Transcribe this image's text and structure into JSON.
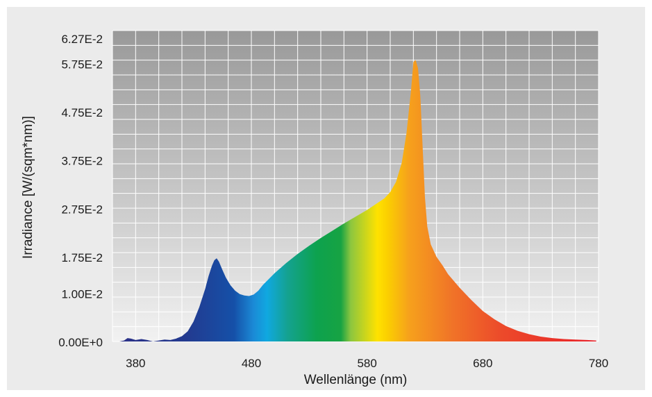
{
  "chart_data": {
    "type": "area",
    "title": "",
    "xlabel": "Wellenlänge (nm)",
    "ylabel": "Irradiance [W/(sqm*nm)]",
    "xlim": [
      360,
      780
    ],
    "ylim": [
      0,
      0.0643
    ],
    "grid": true,
    "x_ticks": [
      380,
      480,
      580,
      680,
      780
    ],
    "x_tick_labels": [
      "380",
      "480",
      "580",
      "680",
      "780"
    ],
    "y_ticks": [
      0,
      0.01,
      0.0175,
      0.0275,
      0.0375,
      0.0475,
      0.0575,
      0.0627
    ],
    "y_tick_labels": [
      "0.00E+0",
      "1.00E-2",
      "1.75E-2",
      "2.75E-2",
      "3.75E-2",
      "4.75E-2",
      "5.75E-2",
      "6.27E-2"
    ],
    "fill": "visible-spectrum gradient (violet-blue to red)",
    "series": [
      {
        "x": [
          366,
          370,
          373,
          376,
          380,
          385,
          390,
          395,
          400,
          405,
          410,
          415,
          420,
          425,
          430,
          435,
          440,
          443,
          446,
          448,
          450,
          452,
          455,
          458,
          462,
          466,
          470,
          474,
          478,
          482,
          486,
          490,
          495,
          500,
          510,
          520,
          530,
          540,
          550,
          560,
          570,
          580,
          590,
          595,
          600,
          605,
          610,
          614,
          618,
          620,
          622,
          624,
          626,
          628,
          630,
          632,
          635,
          640,
          645,
          650,
          660,
          670,
          680,
          690,
          700,
          710,
          720,
          730,
          740,
          750,
          760,
          770,
          778
        ],
        "y": [
          0.0,
          0.0002,
          0.0007,
          0.0006,
          0.0003,
          0.0005,
          0.0003,
          0.0,
          0.0002,
          0.0004,
          0.0003,
          0.0006,
          0.0011,
          0.0021,
          0.0041,
          0.0071,
          0.0108,
          0.0135,
          0.0157,
          0.0168,
          0.0172,
          0.0165,
          0.0148,
          0.0132,
          0.0116,
          0.0105,
          0.0098,
          0.0095,
          0.0094,
          0.0097,
          0.0105,
          0.0117,
          0.0129,
          0.0141,
          0.0162,
          0.0181,
          0.0198,
          0.0214,
          0.0229,
          0.0244,
          0.0258,
          0.0272,
          0.0288,
          0.0296,
          0.0309,
          0.033,
          0.037,
          0.043,
          0.052,
          0.0578,
          0.0582,
          0.0565,
          0.0508,
          0.0402,
          0.0298,
          0.0238,
          0.0201,
          0.0175,
          0.0158,
          0.0139,
          0.0111,
          0.0086,
          0.0063,
          0.0046,
          0.0032,
          0.0022,
          0.0015,
          0.001,
          0.0007,
          0.0005,
          0.0004,
          0.0003,
          0.0002
        ]
      }
    ]
  }
}
